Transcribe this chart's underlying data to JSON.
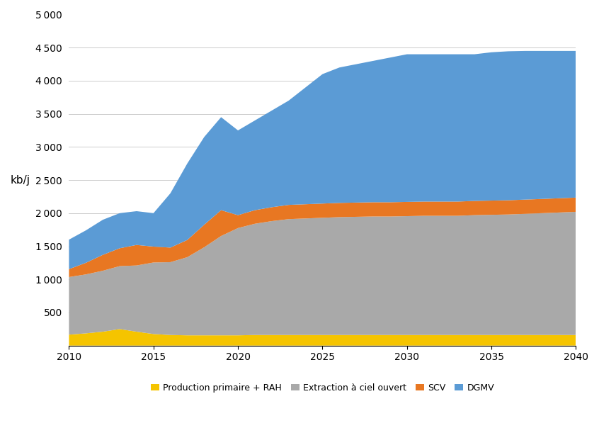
{
  "years": [
    2010,
    2011,
    2012,
    2013,
    2014,
    2015,
    2016,
    2017,
    2018,
    2019,
    2020,
    2021,
    2022,
    2023,
    2024,
    2025,
    2026,
    2027,
    2028,
    2029,
    2030,
    2031,
    2032,
    2033,
    2034,
    2035,
    2036,
    2037,
    2038,
    2039,
    2040
  ],
  "production_primaire": [
    165,
    185,
    210,
    250,
    210,
    175,
    160,
    155,
    155,
    155,
    155,
    160,
    160,
    160,
    160,
    160,
    160,
    160,
    160,
    160,
    160,
    160,
    160,
    160,
    160,
    160,
    160,
    160,
    160,
    160,
    160
  ],
  "extraction_ciel_ouvert": [
    870,
    890,
    920,
    950,
    1000,
    1080,
    1100,
    1180,
    1330,
    1500,
    1620,
    1680,
    1720,
    1750,
    1760,
    1770,
    1780,
    1785,
    1790,
    1790,
    1795,
    1800,
    1800,
    1800,
    1810,
    1815,
    1820,
    1830,
    1840,
    1850,
    1860
  ],
  "scv": [
    120,
    175,
    240,
    270,
    310,
    240,
    220,
    260,
    340,
    390,
    195,
    205,
    210,
    215,
    215,
    215,
    215,
    215,
    215,
    215,
    215,
    215,
    215,
    215,
    215,
    215,
    215,
    215,
    215,
    215,
    215
  ],
  "dgmv": [
    445,
    490,
    530,
    530,
    510,
    505,
    820,
    1155,
    1325,
    1405,
    1280,
    1355,
    1460,
    1575,
    1765,
    1955,
    2045,
    2090,
    2135,
    2185,
    2230,
    2225,
    2225,
    2225,
    2215,
    2240,
    2250,
    2245,
    2235,
    2225,
    2215
  ],
  "colors": {
    "production_primaire": "#F5C400",
    "extraction_ciel_ouvert": "#A9A9A9",
    "scv": "#E87722",
    "dgmv": "#5B9BD5"
  },
  "labels": {
    "production_primaire": "Production primaire + RAH",
    "extraction_ciel_ouvert": "Extraction à ciel ouvert",
    "scv": "SCV",
    "dgmv": "DGMV"
  },
  "ylabel": "kb/j",
  "ylim": [
    0,
    5000
  ],
  "yticks": [
    500,
    1000,
    1500,
    2000,
    2500,
    3000,
    3500,
    4000,
    4500,
    5000
  ],
  "xlim": [
    2010,
    2040
  ],
  "xticks": [
    2010,
    2015,
    2020,
    2025,
    2030,
    2035,
    2040
  ],
  "background_color": "#FFFFFF",
  "grid_color": "#CCCCCC"
}
